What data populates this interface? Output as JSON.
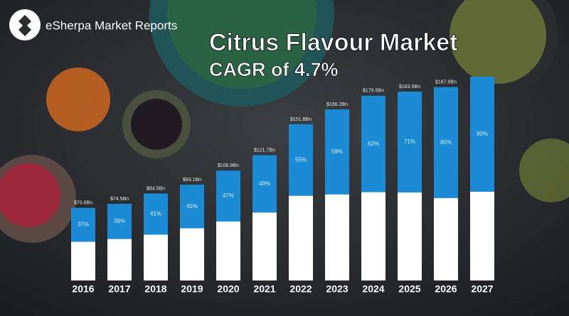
{
  "chart_data": {
    "type": "stacked-bar",
    "brand": "eSherpa Market Reports",
    "title": "Citrus Flavour Market",
    "subtitle": "CAGR of 4.7%",
    "categories": [
      "2016",
      "2017",
      "2018",
      "2019",
      "2020",
      "2021",
      "2022",
      "2023",
      "2024",
      "2025",
      "2026",
      "2027"
    ],
    "values": [
      70.6,
      74.5,
      84.5,
      93.1,
      106.8,
      121.7,
      151.8,
      166.2,
      179.5,
      183.5,
      187.9,
      198
    ],
    "value_labels": [
      "$70.6Bn",
      "$74.5Bn",
      "$84.5Bn",
      "$93.1Bn",
      "$106.8Bn",
      "$121.7Bn",
      "$151.8Bn",
      "$166.2Bn",
      "$179.5Bn",
      "$183.5Bn",
      "$187.9Bn",
      null
    ],
    "base_values": [
      37.6,
      40.3,
      44.5,
      50.7,
      57.3,
      66.0,
      82.3,
      83.6,
      85.8,
      85.5,
      80.1,
      86.2
    ],
    "segment_labels": [
      "37%",
      "39%",
      "41%",
      "45%",
      "47%",
      "49%",
      "55%",
      "59%",
      "62%",
      "71%",
      "85%",
      "90%"
    ],
    "color": "#1b8bd6",
    "base_color": "#ffffff"
  }
}
